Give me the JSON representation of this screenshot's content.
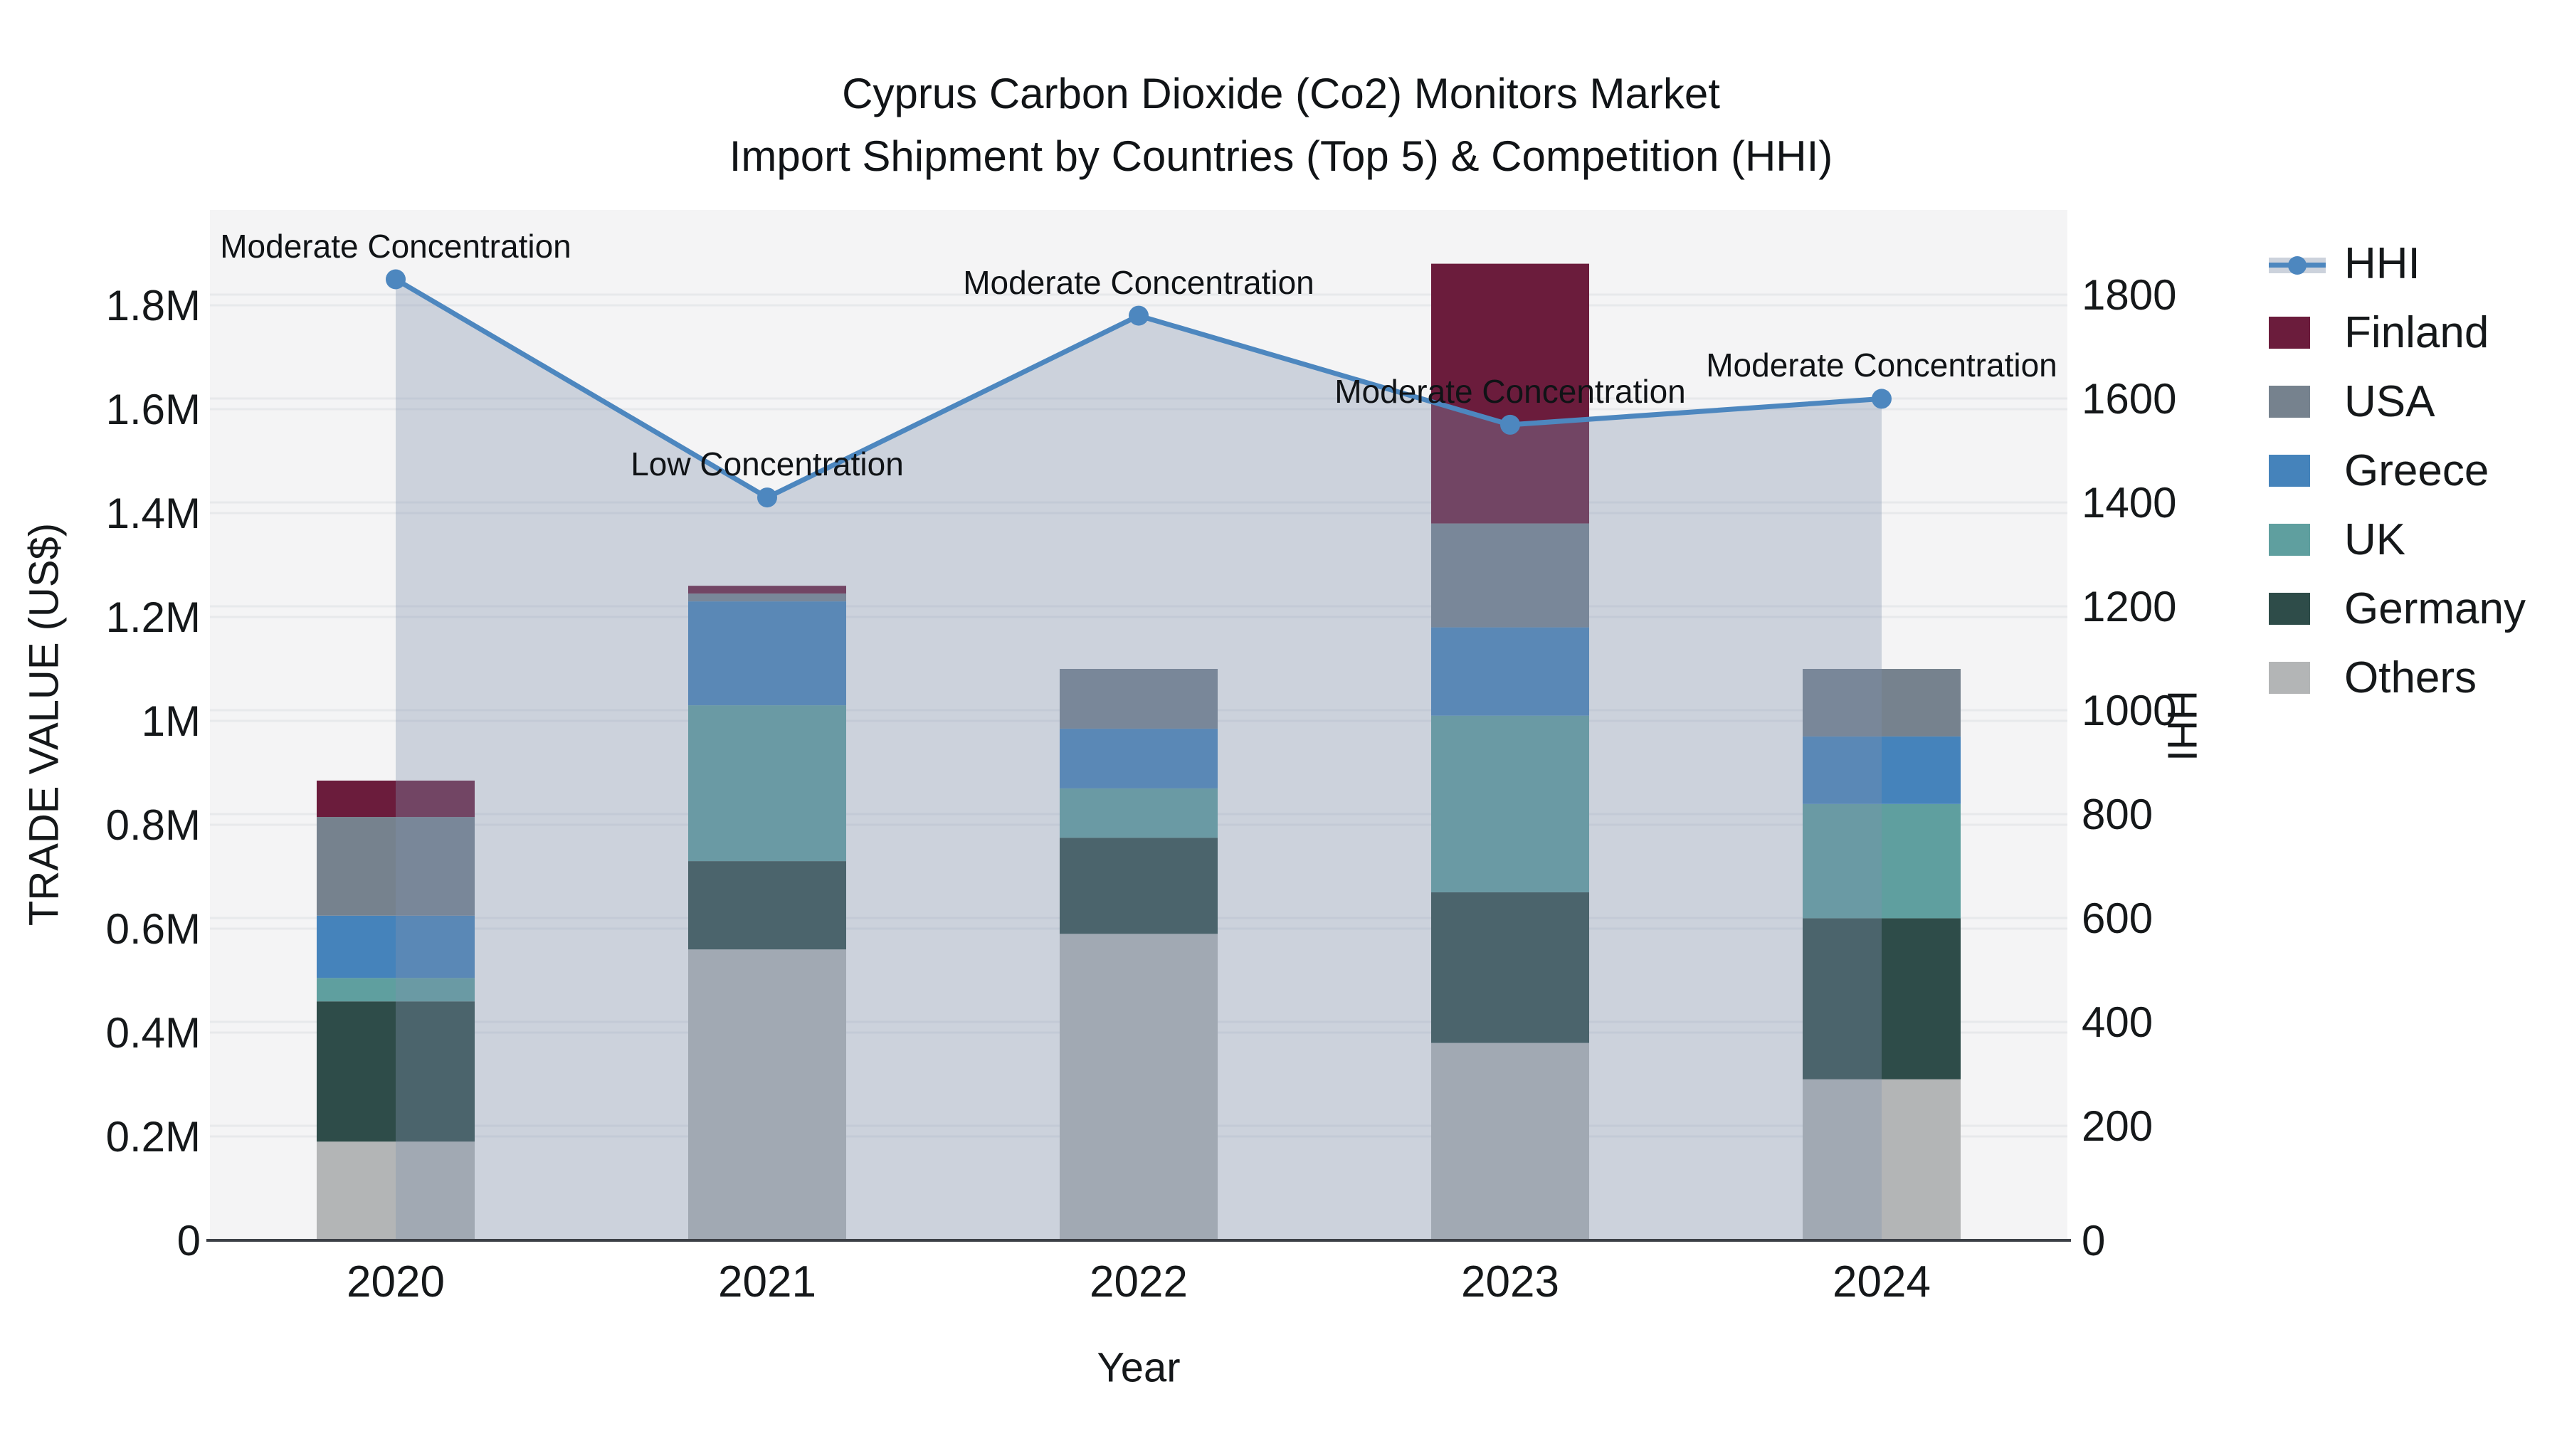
{
  "title": {
    "line1": "Cyprus Carbon Dioxide (Co2) Monitors Market",
    "line2": "Import Shipment by Countries (Top 5) & Competition (HHI)"
  },
  "axes": {
    "left": {
      "title": "TRADE VALUE (US$)",
      "ticks": [
        "0",
        "0.2M",
        "0.4M",
        "0.6M",
        "0.8M",
        "1M",
        "1.2M",
        "1.4M",
        "1.6M",
        "1.8M"
      ],
      "tick_values_musd": [
        0,
        0.2,
        0.4,
        0.6,
        0.8,
        1.0,
        1.2,
        1.4,
        1.6,
        1.8
      ]
    },
    "right": {
      "title": "HHI",
      "ticks": [
        "0",
        "200",
        "400",
        "600",
        "800",
        "1000",
        "1200",
        "1400",
        "1600",
        "1800"
      ],
      "tick_values": [
        0,
        200,
        400,
        600,
        800,
        1000,
        1200,
        1400,
        1600,
        1800
      ]
    },
    "x": {
      "title": "Year",
      "ticks": [
        "2020",
        "2021",
        "2022",
        "2023",
        "2024"
      ]
    }
  },
  "legend": {
    "items": [
      {
        "label": "HHI",
        "type": "line",
        "color": "#4d87bf"
      },
      {
        "label": "Finland",
        "type": "swatch",
        "color": "#6b1c3c"
      },
      {
        "label": "USA",
        "type": "swatch",
        "color": "#76828e"
      },
      {
        "label": "Greece",
        "type": "swatch",
        "color": "#4583bb"
      },
      {
        "label": "UK",
        "type": "swatch",
        "color": "#5f9f9f"
      },
      {
        "label": "Germany",
        "type": "swatch",
        "color": "#2e4c49"
      },
      {
        "label": "Others",
        "type": "swatch",
        "color": "#b3b5b6"
      }
    ]
  },
  "chart_data": {
    "type": "combo-stacked-bar-line",
    "categories": [
      "2020",
      "2021",
      "2022",
      "2023",
      "2024"
    ],
    "bar_unit": "US$ millions",
    "series": [
      {
        "name": "Finland",
        "color": "#6b1c3c",
        "values_musd": [
          0.07,
          0.015,
          0,
          0.5,
          0
        ]
      },
      {
        "name": "USA",
        "color": "#76828e",
        "values_musd": [
          0.19,
          0.015,
          0.115,
          0.2,
          0.13
        ]
      },
      {
        "name": "Greece",
        "color": "#4583bb",
        "values_musd": [
          0.12,
          0.2,
          0.115,
          0.17,
          0.13
        ]
      },
      {
        "name": "UK",
        "color": "#5f9f9f",
        "values_musd": [
          0.045,
          0.3,
          0.095,
          0.34,
          0.22
        ]
      },
      {
        "name": "Germany",
        "color": "#2e4c49",
        "values_musd": [
          0.27,
          0.17,
          0.185,
          0.29,
          0.31
        ]
      },
      {
        "name": "Others",
        "color": "#b3b5b6",
        "values_musd": [
          0.19,
          0.56,
          0.59,
          0.38,
          0.31
        ]
      }
    ],
    "bar_totals_musd": [
      0.885,
      1.26,
      1.1,
      1.88,
      1.1
    ],
    "line": {
      "name": "HHI",
      "axis": "right",
      "color": "#4d87bf",
      "fill_color": "rgba(130,145,175,0.35)",
      "values": [
        1850,
        1430,
        1780,
        1570,
        1620
      ]
    },
    "annotations": [
      {
        "x": "2020",
        "text": "Moderate Concentration"
      },
      {
        "x": "2021",
        "text": "Low Concentration"
      },
      {
        "x": "2022",
        "text": "Moderate Concentration"
      },
      {
        "x": "2023",
        "text": "Moderate Concentration"
      },
      {
        "x": "2024",
        "text": "Moderate Concentration"
      }
    ],
    "ylim_left_musd": [
      0,
      1.984
    ],
    "ylim_right": [
      0,
      1984
    ],
    "grid": true,
    "legend_position": "right",
    "plot_bg": "#f4f4f5",
    "gridline_color": "#e7e9eb",
    "axisline_color": "#3c4046"
  }
}
